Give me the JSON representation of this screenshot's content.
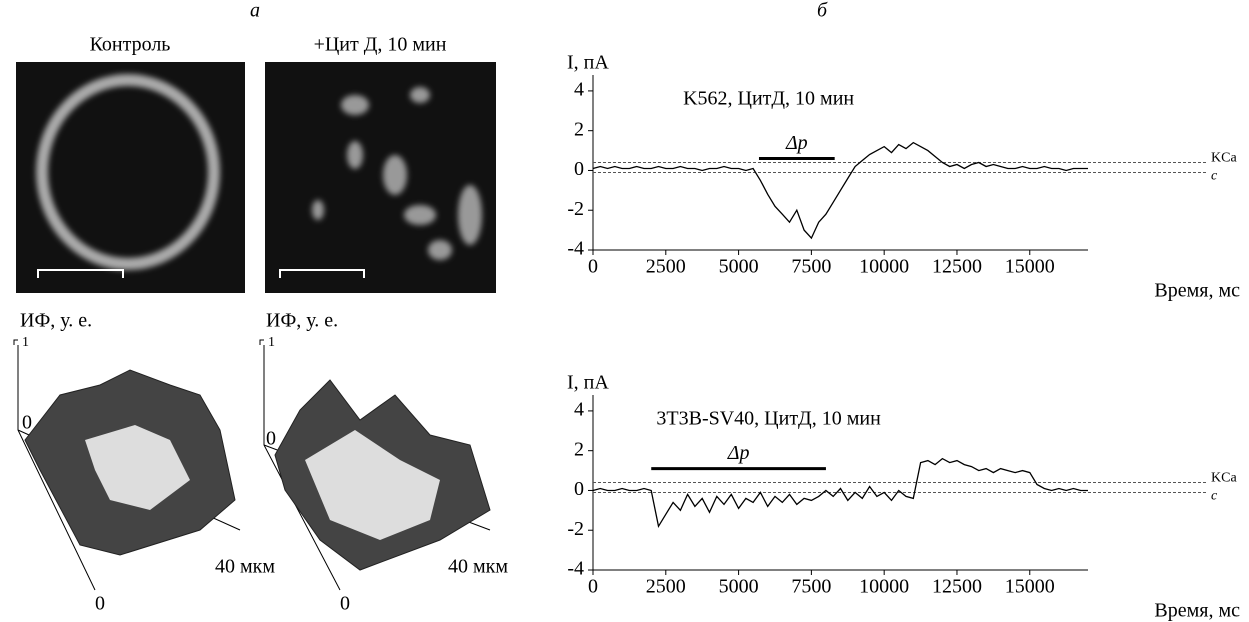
{
  "panel_a": {
    "letter": "а",
    "images": [
      {
        "title": "Контроль"
      },
      {
        "title": "+Цит Д, 10 мин"
      }
    ],
    "surfaces": [
      {
        "zlabel": "ИФ, у. е.",
        "z_top": 1,
        "z_bottom": 0,
        "x_origin": 0,
        "x_extent": "40 мкм"
      },
      {
        "zlabel": "ИФ, у. е.",
        "z_top": 1,
        "z_bottom": 0,
        "x_origin": 0,
        "x_extent": "40 мкм"
      }
    ]
  },
  "panel_b": {
    "letter": "б"
  },
  "chart_data": [
    {
      "type": "line",
      "annotation_title": "K562, ЦитД, 10 мин",
      "ylabel": "I, пА",
      "xlabel": "Время, мс",
      "x": [
        0,
        250,
        500,
        750,
        1000,
        1250,
        1500,
        1750,
        2000,
        2250,
        2500,
        2750,
        3000,
        3250,
        3500,
        3750,
        4000,
        4250,
        4500,
        4750,
        5000,
        5250,
        5500,
        5750,
        6000,
        6250,
        6500,
        6750,
        7000,
        7250,
        7500,
        7750,
        8000,
        8250,
        8500,
        8750,
        9000,
        9250,
        9500,
        9750,
        10000,
        10250,
        10500,
        10750,
        11000,
        11250,
        11500,
        11750,
        12000,
        12250,
        12500,
        12750,
        13000,
        13250,
        13500,
        13750,
        14000,
        14250,
        14500,
        14750,
        15000,
        15250,
        15500,
        15750,
        16000,
        16250,
        16500,
        16750,
        17000
      ],
      "series": [
        {
          "color": "#000000",
          "values": [
            0.1,
            0.2,
            0.1,
            0.2,
            0.1,
            0.1,
            0.2,
            0.1,
            0.1,
            0.2,
            0.1,
            0.1,
            0.2,
            0.1,
            0.1,
            0.0,
            0.1,
            0.1,
            0.2,
            0.1,
            0.1,
            0.0,
            0.1,
            -0.5,
            -1.2,
            -1.8,
            -2.2,
            -2.6,
            -2.0,
            -3.0,
            -3.4,
            -2.6,
            -2.2,
            -1.6,
            -1.0,
            -0.4,
            0.2,
            0.5,
            0.8,
            1.0,
            1.2,
            0.9,
            1.3,
            1.1,
            1.4,
            1.2,
            1.0,
            0.7,
            0.4,
            0.2,
            0.3,
            0.1,
            0.3,
            0.4,
            0.2,
            0.3,
            0.2,
            0.1,
            0.1,
            0.2,
            0.1,
            0.1,
            0.2,
            0.1,
            0.1,
            0.0,
            0.1,
            0.1,
            0.1
          ]
        }
      ],
      "xlim": [
        0,
        17000
      ],
      "ylim": [
        -4,
        4.8
      ],
      "xticks": [
        0,
        2500,
        5000,
        7500,
        10000,
        12500,
        15000
      ],
      "yticks": [
        -4,
        -2,
        0,
        2,
        4
      ],
      "reference_lines": [
        {
          "label": "KCa",
          "value": 0.4
        },
        {
          "label": "c",
          "value": -0.1
        }
      ],
      "delta_bar": {
        "label": "Δp",
        "x": [
          5700,
          8300
        ],
        "y": 0.6
      }
    },
    {
      "type": "line",
      "annotation_title": "3T3B-SV40, ЦитД, 10 мин",
      "ylabel": "I, пА",
      "xlabel": "Время, мс",
      "x": [
        0,
        250,
        500,
        750,
        1000,
        1250,
        1500,
        1750,
        2000,
        2250,
        2500,
        2750,
        3000,
        3250,
        3500,
        3750,
        4000,
        4250,
        4500,
        4750,
        5000,
        5250,
        5500,
        5750,
        6000,
        6250,
        6500,
        6750,
        7000,
        7250,
        7500,
        7750,
        8000,
        8250,
        8500,
        8750,
        9000,
        9250,
        9500,
        9750,
        10000,
        10250,
        10500,
        10750,
        11000,
        11250,
        11500,
        11750,
        12000,
        12250,
        12500,
        12750,
        13000,
        13250,
        13500,
        13750,
        14000,
        14250,
        14500,
        14750,
        15000,
        15250,
        15500,
        15750,
        16000,
        16250,
        16500,
        16750,
        17000
      ],
      "series": [
        {
          "color": "#000000",
          "values": [
            0.0,
            0.1,
            0.0,
            0.0,
            0.1,
            0.0,
            0.0,
            0.1,
            0.0,
            -1.8,
            -1.2,
            -0.6,
            -1.0,
            -0.2,
            -0.8,
            -0.4,
            -1.1,
            -0.3,
            -0.7,
            -0.2,
            -0.9,
            -0.4,
            -0.6,
            -0.1,
            -0.8,
            -0.3,
            -0.6,
            -0.2,
            -0.7,
            -0.4,
            -0.5,
            -0.3,
            0.0,
            -0.3,
            0.1,
            -0.5,
            -0.1,
            -0.4,
            0.2,
            -0.3,
            -0.1,
            -0.5,
            0.0,
            -0.3,
            -0.4,
            1.4,
            1.5,
            1.3,
            1.6,
            1.4,
            1.5,
            1.3,
            1.2,
            1.0,
            1.1,
            0.9,
            1.1,
            1.0,
            0.9,
            1.0,
            0.9,
            0.3,
            0.1,
            0.0,
            0.1,
            0.0,
            0.1,
            0.0,
            0.0
          ]
        }
      ],
      "xlim": [
        0,
        17000
      ],
      "ylim": [
        -4,
        4.8
      ],
      "xticks": [
        0,
        2500,
        5000,
        7500,
        10000,
        12500,
        15000
      ],
      "yticks": [
        -4,
        -2,
        0,
        2,
        4
      ],
      "reference_lines": [
        {
          "label": "KCa",
          "value": 0.4
        },
        {
          "label": "c",
          "value": -0.1
        }
      ],
      "delta_bar": {
        "label": "Δp",
        "x": [
          2000,
          8000
        ],
        "y": 1.1
      }
    }
  ]
}
